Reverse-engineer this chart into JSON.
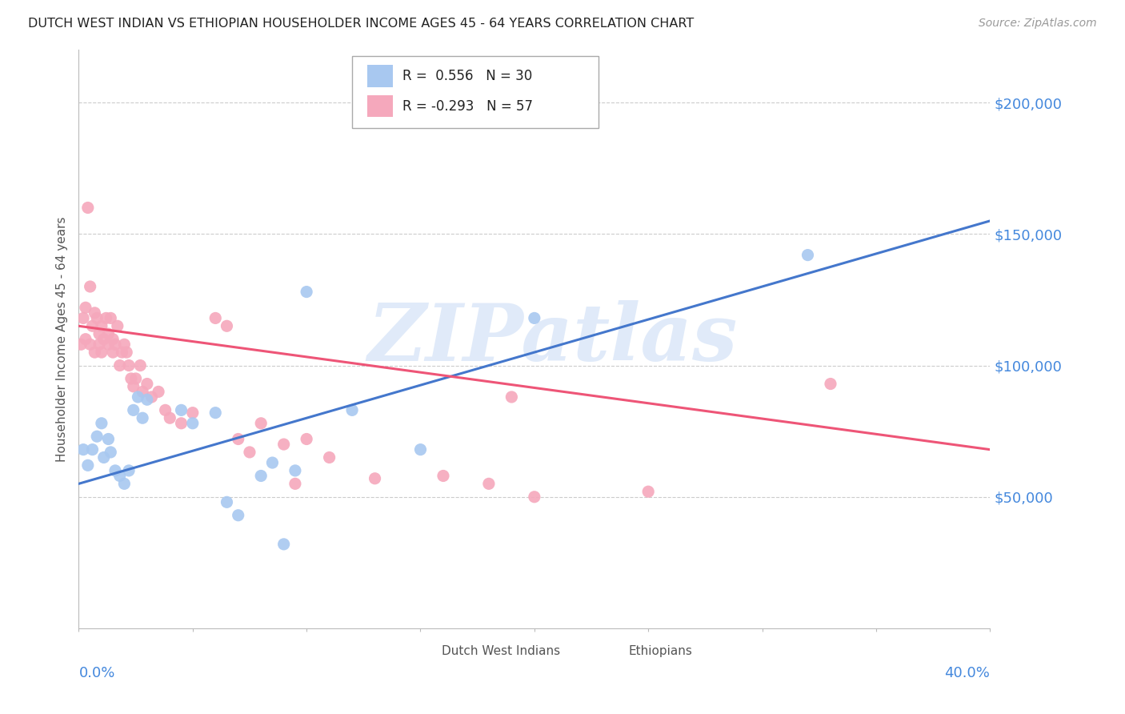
{
  "title": "DUTCH WEST INDIAN VS ETHIOPIAN HOUSEHOLDER INCOME AGES 45 - 64 YEARS CORRELATION CHART",
  "source": "Source: ZipAtlas.com",
  "ylabel": "Householder Income Ages 45 - 64 years",
  "x_range": [
    0.0,
    0.4
  ],
  "y_range": [
    0,
    220000
  ],
  "y_ticks": [
    50000,
    100000,
    150000,
    200000
  ],
  "y_tick_labels": [
    "$50,000",
    "$100,000",
    "$150,000",
    "$200,000"
  ],
  "dwi_color": "#a8c8f0",
  "eth_color": "#f5a8bc",
  "dwi_line_color": "#4477cc",
  "eth_line_color": "#ee5577",
  "dwi_R": 0.556,
  "dwi_N": 30,
  "eth_R": -0.293,
  "eth_N": 57,
  "watermark_text": "ZIPatlas",
  "background_color": "#ffffff",
  "grid_color": "#cccccc",
  "tick_label_color": "#4488dd",
  "dwi_line_x0": 0.0,
  "dwi_line_y0": 55000,
  "dwi_line_x1": 0.4,
  "dwi_line_y1": 155000,
  "eth_line_x0": 0.0,
  "eth_line_y0": 115000,
  "eth_line_x1": 0.4,
  "eth_line_y1": 68000,
  "dutch_west_indians_x": [
    0.002,
    0.004,
    0.006,
    0.008,
    0.01,
    0.011,
    0.013,
    0.014,
    0.016,
    0.018,
    0.02,
    0.022,
    0.024,
    0.026,
    0.028,
    0.03,
    0.045,
    0.05,
    0.06,
    0.065,
    0.07,
    0.08,
    0.085,
    0.09,
    0.095,
    0.1,
    0.12,
    0.15,
    0.2,
    0.32
  ],
  "dutch_west_indians_y": [
    68000,
    62000,
    68000,
    73000,
    78000,
    65000,
    72000,
    67000,
    60000,
    58000,
    55000,
    60000,
    83000,
    88000,
    80000,
    87000,
    83000,
    78000,
    82000,
    48000,
    43000,
    58000,
    63000,
    32000,
    60000,
    128000,
    83000,
    68000,
    118000,
    142000
  ],
  "ethiopians_x": [
    0.001,
    0.002,
    0.003,
    0.003,
    0.004,
    0.005,
    0.005,
    0.006,
    0.007,
    0.007,
    0.008,
    0.009,
    0.009,
    0.01,
    0.01,
    0.011,
    0.012,
    0.013,
    0.013,
    0.014,
    0.015,
    0.015,
    0.016,
    0.017,
    0.018,
    0.019,
    0.02,
    0.021,
    0.022,
    0.023,
    0.024,
    0.025,
    0.027,
    0.028,
    0.03,
    0.032,
    0.035,
    0.038,
    0.04,
    0.045,
    0.05,
    0.06,
    0.065,
    0.07,
    0.075,
    0.08,
    0.09,
    0.095,
    0.1,
    0.11,
    0.13,
    0.16,
    0.18,
    0.19,
    0.2,
    0.25,
    0.33
  ],
  "ethiopians_y": [
    108000,
    118000,
    122000,
    110000,
    160000,
    130000,
    108000,
    115000,
    120000,
    105000,
    118000,
    112000,
    108000,
    115000,
    105000,
    110000,
    118000,
    112000,
    108000,
    118000,
    110000,
    105000,
    108000,
    115000,
    100000,
    105000,
    108000,
    105000,
    100000,
    95000,
    92000,
    95000,
    100000,
    90000,
    93000,
    88000,
    90000,
    83000,
    80000,
    78000,
    82000,
    118000,
    115000,
    72000,
    67000,
    78000,
    70000,
    55000,
    72000,
    65000,
    57000,
    58000,
    55000,
    88000,
    50000,
    52000,
    93000
  ]
}
